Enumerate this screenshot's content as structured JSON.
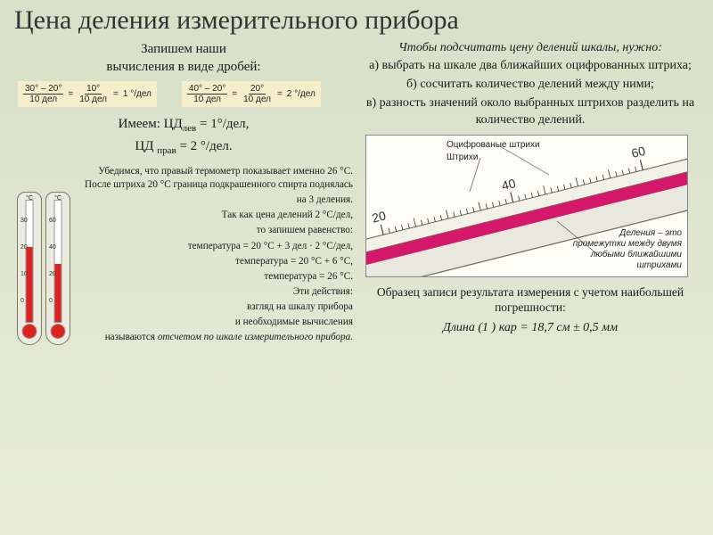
{
  "title": "Цена деления измерительного прибора",
  "intro_l1": "Запишем наши",
  "intro_l2": "вычисления в виде дробей:",
  "frac1": {
    "num1": "30° – 20°",
    "den1": "10 дел",
    "num2": "10°",
    "den2": "10 дел",
    "res": "1 °/дел"
  },
  "frac2": {
    "num1": "40° – 20°",
    "den1": "10 дел",
    "num2": "20°",
    "den2": "10 дел",
    "res": "2 °/дел"
  },
  "have_l1a": "Имеем: ЦД",
  "have_l1_sub": "лев",
  "have_l1b": " = 1°/дел,",
  "have_l2a": "ЦД ",
  "have_l2_sub": "прав",
  "have_l2b": " = 2 °/дел.",
  "v_p1": "Убедимся, что правый термометр показывает именно 26 °С. После штриха 20 °С граница подкрашенного спирта поднялась",
  "v_p2": "на 3 деления.",
  "v_p3": "Так как цена делений 2 °С/дел,",
  "v_p4": "то запишем равенство:",
  "v_p5": "температура = 20 °С + 3 дел · 2 °С/дел,",
  "v_p6": "температура = 20 °С + 6 °С,",
  "v_p7": "температура = 26 °С.",
  "v_p8": "Эти действия:",
  "v_p9": "взгляд на шкалу прибора",
  "v_p10": "и необходимые вычисления",
  "v_p11a": "называются ",
  "v_p11b": "отсчетом по шкале измерительного прибора.",
  "instr": "Чтобы подсчитать цену делений шкалы, нужно:",
  "step_a": "а) выбрать на шкале два ближайших оцифрованных штриха;",
  "step_b": "б) сосчитать количество делений между ними;",
  "step_c": "в) разность значений около выбранных штрихов разделить на количество делений.",
  "ruler": {
    "majors": [
      "20",
      "40",
      "60"
    ],
    "lbl_ocif": "Оцифрованые штрихи",
    "lbl_shtrih": "Штрихи",
    "lbl_del": "Деления – это промежутки между двумя любыми ближайшими штрихами",
    "band_color": "#d6186b",
    "body_color": "#e8e8df",
    "outline": "#6b6b55"
  },
  "thermo_left": {
    "ticks": [
      "30",
      "20",
      "10",
      "0"
    ],
    "fill_pct": 62
  },
  "thermo_right": {
    "ticks": [
      "60",
      "40",
      "20",
      "0"
    ],
    "fill_pct": 48
  },
  "result_caption": "Образец записи результата измерения с учетом наибольшей погрешности:",
  "result_line_a": "Длина (1 ) кар",
  "result_line_b": " = 18,7 см ± 0,5 мм",
  "colors": {
    "bg_top": "#d8e0c8",
    "bg_bot": "#e8ecd8",
    "frac_bg": "#f4eecb"
  }
}
